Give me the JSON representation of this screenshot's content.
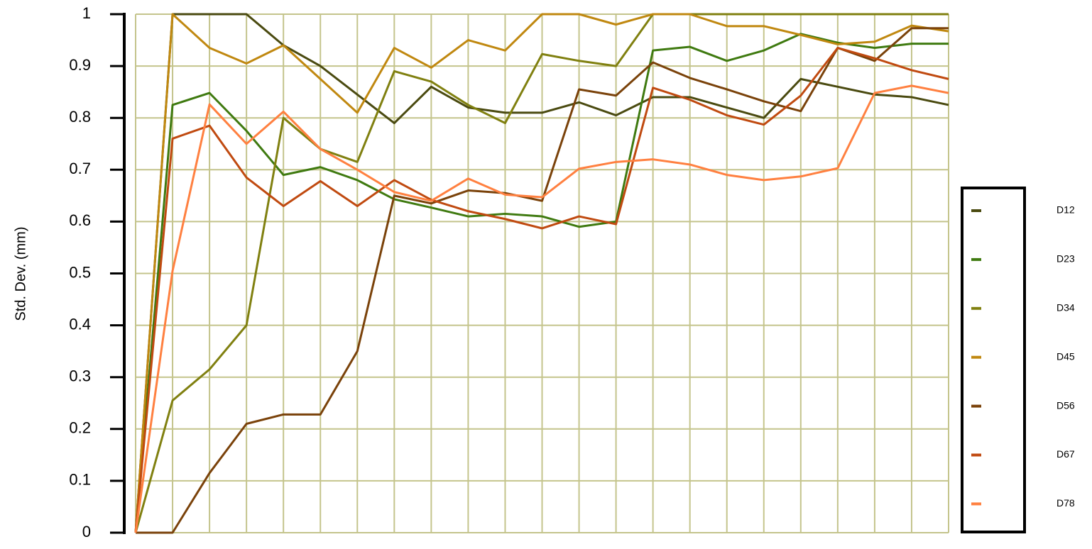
{
  "chart_data": {
    "type": "line",
    "ylabel": "Std. Dev. (mm)",
    "categories": [
      null,
      null,
      null,
      null,
      null,
      null,
      null,
      null,
      null,
      null,
      null,
      null,
      null,
      null,
      null,
      null,
      null,
      null,
      null,
      null,
      null,
      null,
      null
    ],
    "ylim": [
      0,
      1
    ],
    "yticks": [
      0,
      0.1,
      0.2,
      0.3,
      0.4,
      0.5,
      0.6,
      0.7,
      0.8,
      0.9,
      1
    ],
    "grid": true,
    "legend": "right",
    "series": [
      {
        "name": "D12",
        "color": "#4a4a10",
        "values": [
          0,
          1,
          1,
          1,
          0.94,
          0.9,
          0.845,
          0.79,
          0.86,
          0.82,
          0.81,
          0.81,
          0.83,
          0.805,
          0.84,
          0.84,
          0.82,
          0.8,
          0.875,
          0.86,
          0.845,
          0.84,
          0.825
        ]
      },
      {
        "name": "D23",
        "color": "#3f7a10",
        "values": [
          0,
          0.825,
          0.848,
          0.775,
          0.69,
          0.705,
          0.68,
          0.643,
          0.627,
          0.61,
          0.615,
          0.61,
          0.59,
          0.6,
          0.93,
          0.937,
          0.91,
          0.93,
          0.962,
          0.945,
          0.935,
          0.943,
          0.943
        ]
      },
      {
        "name": "D34",
        "color": "#808010",
        "values": [
          0,
          0.255,
          0.315,
          0.4,
          0.8,
          0.74,
          0.715,
          0.89,
          0.87,
          0.825,
          0.79,
          0.923,
          0.91,
          0.9,
          1,
          1,
          1,
          1,
          1,
          1,
          1,
          1,
          1
        ]
      },
      {
        "name": "D45",
        "color": "#c08810",
        "values": [
          0,
          1,
          0.935,
          0.905,
          0.94,
          0.875,
          0.81,
          0.935,
          0.897,
          0.95,
          0.93,
          1,
          1,
          0.98,
          1,
          1,
          0.977,
          0.977,
          0.96,
          0.942,
          0.947,
          0.978,
          0.967
        ]
      },
      {
        "name": "D56",
        "color": "#7a420a",
        "values": [
          0,
          0,
          0.115,
          0.21,
          0.228,
          0.228,
          0.35,
          0.65,
          0.635,
          0.66,
          0.655,
          0.64,
          0.855,
          0.843,
          0.907,
          0.877,
          0.855,
          0.832,
          0.813,
          0.935,
          0.91,
          0.973,
          0.973
        ]
      },
      {
        "name": "D67",
        "color": "#c04a10",
        "values": [
          0,
          0.76,
          0.785,
          0.685,
          0.63,
          0.678,
          0.63,
          0.68,
          0.642,
          0.62,
          0.605,
          0.587,
          0.61,
          0.595,
          0.858,
          0.835,
          0.805,
          0.787,
          0.843,
          0.935,
          0.915,
          0.892,
          0.875
        ]
      },
      {
        "name": "D78",
        "color": "#ff8040",
        "values": [
          0,
          0.505,
          0.826,
          0.75,
          0.812,
          0.74,
          0.7,
          0.657,
          0.64,
          0.683,
          0.652,
          0.647,
          0.702,
          0.715,
          0.72,
          0.71,
          0.69,
          0.68,
          0.687,
          0.703,
          0.848,
          0.862,
          0.848
        ]
      }
    ]
  }
}
